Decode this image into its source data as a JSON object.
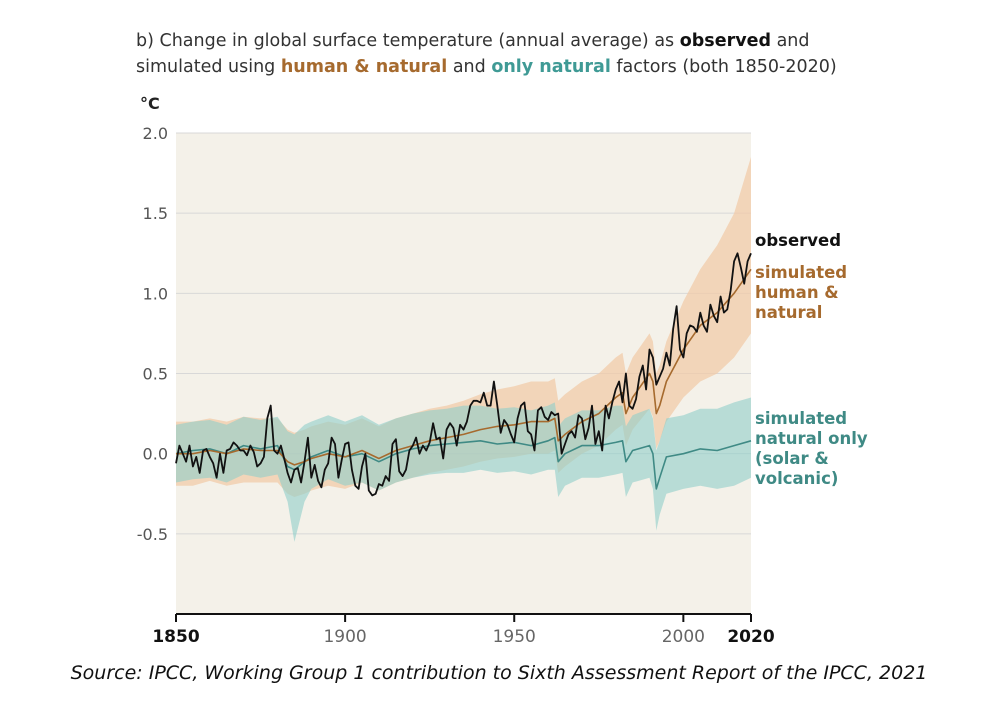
{
  "title": {
    "line1_a": "b) Change in global surface temperature (annual average) as ",
    "line1_b": "observed",
    "line1_c": " and",
    "line2_a": "simulated using ",
    "line2_b": "human & natural",
    "line2_c": " and ",
    "line2_d": "only natural",
    "line2_e": " factors (both 1850-2020)"
  },
  "source": "Source: IPCC, Working Group 1 contribution to Sixth Assessment Report of the IPCC, 2021",
  "colors": {
    "observed": "#111111",
    "human_natural": "#a66a2e",
    "human_natural_band": "#f1cba8",
    "natural_only": "#3f8a85",
    "natural_only_band": "#8fcfc9",
    "plot_background": "#f4f1e9",
    "gridline": "#d8d8d8"
  },
  "chart_data": {
    "type": "line",
    "ylabel": "°C",
    "xlim": [
      1850,
      2020
    ],
    "ylim": [
      -1.0,
      2.0
    ],
    "grid": true,
    "xticks": [
      {
        "value": 1850,
        "label": "1850",
        "bold": true
      },
      {
        "value": 1900,
        "label": "1900",
        "bold": false
      },
      {
        "value": 1950,
        "label": "1950",
        "bold": false
      },
      {
        "value": 2000,
        "label": "2000",
        "bold": false
      },
      {
        "value": 2020,
        "label": "2020",
        "bold": true
      }
    ],
    "yticks": [
      {
        "value": 2.0,
        "label": "2.0"
      },
      {
        "value": 1.5,
        "label": "1.5"
      },
      {
        "value": 1.0,
        "label": "1.0"
      },
      {
        "value": 0.5,
        "label": "0.5"
      },
      {
        "value": 0.0,
        "label": "0.0"
      },
      {
        "value": -0.5,
        "label": "-0.5"
      }
    ],
    "series": [
      {
        "name": "observed",
        "label_lines": [
          "observed"
        ],
        "color": "#111111",
        "x": [
          1850,
          1851,
          1852,
          1853,
          1854,
          1855,
          1856,
          1857,
          1858,
          1859,
          1860,
          1861,
          1862,
          1863,
          1864,
          1865,
          1866,
          1867,
          1868,
          1869,
          1870,
          1871,
          1872,
          1873,
          1874,
          1875,
          1876,
          1877,
          1878,
          1879,
          1880,
          1881,
          1882,
          1883,
          1884,
          1885,
          1886,
          1887,
          1888,
          1889,
          1890,
          1891,
          1892,
          1893,
          1894,
          1895,
          1896,
          1897,
          1898,
          1899,
          1900,
          1901,
          1902,
          1903,
          1904,
          1905,
          1906,
          1907,
          1908,
          1909,
          1910,
          1911,
          1912,
          1913,
          1914,
          1915,
          1916,
          1917,
          1918,
          1919,
          1920,
          1921,
          1922,
          1923,
          1924,
          1925,
          1926,
          1927,
          1928,
          1929,
          1930,
          1931,
          1932,
          1933,
          1934,
          1935,
          1936,
          1937,
          1938,
          1939,
          1940,
          1941,
          1942,
          1943,
          1944,
          1945,
          1946,
          1947,
          1948,
          1949,
          1950,
          1951,
          1952,
          1953,
          1954,
          1955,
          1956,
          1957,
          1958,
          1959,
          1960,
          1961,
          1962,
          1963,
          1964,
          1965,
          1966,
          1967,
          1968,
          1969,
          1970,
          1971,
          1972,
          1973,
          1974,
          1975,
          1976,
          1977,
          1978,
          1979,
          1980,
          1981,
          1982,
          1983,
          1984,
          1985,
          1986,
          1987,
          1988,
          1989,
          1990,
          1991,
          1992,
          1993,
          1994,
          1995,
          1996,
          1997,
          1998,
          1999,
          2000,
          2001,
          2002,
          2003,
          2004,
          2005,
          2006,
          2007,
          2008,
          2009,
          2010,
          2011,
          2012,
          2013,
          2014,
          2015,
          2016,
          2017,
          2018,
          2019,
          2020
        ],
        "y": [
          -0.06,
          0.05,
          0.0,
          -0.05,
          0.05,
          -0.08,
          -0.02,
          -0.12,
          0.02,
          0.03,
          -0.02,
          -0.06,
          -0.15,
          0.0,
          -0.12,
          0.02,
          0.03,
          0.07,
          0.05,
          0.02,
          0.02,
          -0.01,
          0.05,
          0.01,
          -0.08,
          -0.06,
          -0.02,
          0.22,
          0.3,
          0.02,
          0.0,
          0.05,
          -0.03,
          -0.12,
          -0.18,
          -0.1,
          -0.09,
          -0.18,
          -0.05,
          0.1,
          -0.15,
          -0.07,
          -0.17,
          -0.21,
          -0.1,
          -0.06,
          0.1,
          0.06,
          -0.15,
          -0.04,
          0.06,
          0.07,
          -0.1,
          -0.2,
          -0.22,
          -0.08,
          0.0,
          -0.23,
          -0.26,
          -0.25,
          -0.19,
          -0.2,
          -0.14,
          -0.17,
          0.06,
          0.09,
          -0.11,
          -0.14,
          -0.1,
          0.02,
          0.05,
          0.1,
          0.0,
          0.05,
          0.02,
          0.07,
          0.19,
          0.09,
          0.1,
          -0.03,
          0.15,
          0.19,
          0.16,
          0.05,
          0.18,
          0.15,
          0.2,
          0.3,
          0.33,
          0.33,
          0.32,
          0.38,
          0.3,
          0.3,
          0.45,
          0.3,
          0.13,
          0.21,
          0.18,
          0.12,
          0.07,
          0.22,
          0.3,
          0.32,
          0.14,
          0.12,
          0.02,
          0.27,
          0.29,
          0.23,
          0.21,
          0.26,
          0.24,
          0.25,
          0.0,
          0.06,
          0.12,
          0.14,
          0.1,
          0.24,
          0.22,
          0.09,
          0.16,
          0.3,
          0.06,
          0.14,
          0.02,
          0.3,
          0.22,
          0.32,
          0.4,
          0.45,
          0.32,
          0.5,
          0.3,
          0.28,
          0.34,
          0.48,
          0.55,
          0.4,
          0.65,
          0.6,
          0.43,
          0.48,
          0.53,
          0.63,
          0.55,
          0.78,
          0.92,
          0.65,
          0.6,
          0.75,
          0.8,
          0.79,
          0.76,
          0.88,
          0.8,
          0.76,
          0.93,
          0.86,
          0.82,
          0.98,
          0.88,
          0.9,
          1.02,
          1.2,
          1.25,
          1.16,
          1.06,
          1.2,
          1.25
        ]
      },
      {
        "name": "simulated human & natural",
        "label_lines": [
          "simulated",
          "human &",
          "natural"
        ],
        "color": "#a66a2e",
        "x": [
          1850,
          1855,
          1860,
          1865,
          1870,
          1875,
          1880,
          1883,
          1885,
          1888,
          1890,
          1895,
          1900,
          1905,
          1910,
          1915,
          1920,
          1925,
          1930,
          1935,
          1940,
          1945,
          1950,
          1955,
          1960,
          1962,
          1963,
          1965,
          1970,
          1975,
          1980,
          1982,
          1983,
          1985,
          1990,
          1991,
          1992,
          1993,
          1995,
          2000,
          2005,
          2010,
          2015,
          2020
        ],
        "y": [
          0.0,
          0.0,
          0.02,
          0.0,
          0.03,
          0.02,
          0.02,
          -0.05,
          -0.07,
          -0.05,
          -0.03,
          0.0,
          -0.02,
          0.02,
          -0.03,
          0.02,
          0.05,
          0.08,
          0.1,
          0.12,
          0.15,
          0.17,
          0.18,
          0.2,
          0.2,
          0.22,
          0.08,
          0.12,
          0.2,
          0.25,
          0.35,
          0.38,
          0.25,
          0.35,
          0.5,
          0.45,
          0.25,
          0.3,
          0.45,
          0.65,
          0.8,
          0.88,
          1.0,
          1.15
        ]
      },
      {
        "name": "simulated natural only (solar & volcanic)",
        "label_lines": [
          "simulated",
          "natural only",
          "(solar &",
          "volcanic)"
        ],
        "color": "#3f8a85",
        "x": [
          1850,
          1855,
          1860,
          1865,
          1870,
          1875,
          1880,
          1883,
          1885,
          1888,
          1890,
          1895,
          1900,
          1905,
          1910,
          1915,
          1920,
          1925,
          1930,
          1935,
          1940,
          1945,
          1950,
          1955,
          1960,
          1962,
          1963,
          1965,
          1970,
          1975,
          1980,
          1982,
          1983,
          1985,
          1990,
          1991,
          1992,
          1993,
          1995,
          2000,
          2005,
          2010,
          2015,
          2020
        ],
        "y": [
          0.0,
          0.02,
          0.03,
          0.0,
          0.05,
          0.03,
          0.05,
          -0.08,
          -0.1,
          -0.05,
          -0.02,
          0.02,
          -0.02,
          0.0,
          -0.05,
          0.0,
          0.03,
          0.05,
          0.06,
          0.07,
          0.08,
          0.06,
          0.07,
          0.05,
          0.08,
          0.1,
          -0.05,
          0.0,
          0.05,
          0.05,
          0.07,
          0.08,
          -0.05,
          0.02,
          0.05,
          0.0,
          -0.22,
          -0.15,
          -0.02,
          0.0,
          0.03,
          0.02,
          0.05,
          0.08
        ]
      }
    ],
    "bands": [
      {
        "series": "simulated human & natural",
        "x": [
          1850,
          1855,
          1860,
          1865,
          1870,
          1875,
          1880,
          1883,
          1885,
          1888,
          1890,
          1895,
          1900,
          1905,
          1910,
          1915,
          1920,
          1925,
          1930,
          1935,
          1940,
          1945,
          1950,
          1955,
          1960,
          1962,
          1963,
          1965,
          1970,
          1975,
          1980,
          1982,
          1983,
          1985,
          1990,
          1991,
          1992,
          1993,
          1995,
          2000,
          2005,
          2010,
          2015,
          2020
        ],
        "low": [
          -0.2,
          -0.2,
          -0.17,
          -0.2,
          -0.18,
          -0.18,
          -0.18,
          -0.25,
          -0.27,
          -0.25,
          -0.23,
          -0.2,
          -0.22,
          -0.18,
          -0.23,
          -0.18,
          -0.15,
          -0.12,
          -0.1,
          -0.08,
          -0.05,
          -0.03,
          -0.02,
          0.0,
          0.0,
          0.02,
          -0.12,
          -0.08,
          0.0,
          0.05,
          0.15,
          0.18,
          0.05,
          0.15,
          0.28,
          0.23,
          0.03,
          0.08,
          0.2,
          0.35,
          0.45,
          0.5,
          0.6,
          0.75
        ],
        "high": [
          0.2,
          0.2,
          0.22,
          0.2,
          0.23,
          0.22,
          0.22,
          0.15,
          0.13,
          0.15,
          0.17,
          0.2,
          0.18,
          0.22,
          0.17,
          0.22,
          0.25,
          0.28,
          0.3,
          0.33,
          0.37,
          0.4,
          0.42,
          0.45,
          0.45,
          0.47,
          0.33,
          0.37,
          0.45,
          0.5,
          0.6,
          0.63,
          0.5,
          0.6,
          0.75,
          0.7,
          0.5,
          0.55,
          0.7,
          0.95,
          1.15,
          1.3,
          1.5,
          1.85
        ]
      },
      {
        "series": "simulated natural only (solar & volcanic)",
        "x": [
          1850,
          1855,
          1860,
          1865,
          1870,
          1875,
          1880,
          1883,
          1885,
          1888,
          1890,
          1895,
          1900,
          1905,
          1910,
          1915,
          1920,
          1925,
          1930,
          1935,
          1940,
          1945,
          1950,
          1955,
          1960,
          1962,
          1963,
          1965,
          1970,
          1975,
          1980,
          1982,
          1983,
          1985,
          1990,
          1991,
          1992,
          1993,
          1995,
          2000,
          2005,
          2010,
          2015,
          2020
        ],
        "low": [
          -0.18,
          -0.16,
          -0.15,
          -0.18,
          -0.13,
          -0.15,
          -0.13,
          -0.3,
          -0.55,
          -0.3,
          -0.22,
          -0.16,
          -0.2,
          -0.18,
          -0.23,
          -0.18,
          -0.15,
          -0.13,
          -0.12,
          -0.12,
          -0.1,
          -0.12,
          -0.11,
          -0.13,
          -0.1,
          -0.1,
          -0.27,
          -0.2,
          -0.15,
          -0.15,
          -0.13,
          -0.12,
          -0.27,
          -0.18,
          -0.15,
          -0.22,
          -0.48,
          -0.38,
          -0.25,
          -0.22,
          -0.2,
          -0.22,
          -0.2,
          -0.15
        ],
        "high": [
          0.18,
          0.2,
          0.21,
          0.18,
          0.23,
          0.21,
          0.23,
          0.14,
          0.12,
          0.18,
          0.2,
          0.24,
          0.2,
          0.24,
          0.18,
          0.22,
          0.25,
          0.27,
          0.28,
          0.3,
          0.3,
          0.28,
          0.29,
          0.27,
          0.3,
          0.32,
          0.17,
          0.22,
          0.27,
          0.27,
          0.3,
          0.3,
          0.17,
          0.24,
          0.28,
          0.22,
          0.02,
          0.08,
          0.22,
          0.24,
          0.28,
          0.28,
          0.32,
          0.35
        ]
      }
    ]
  }
}
